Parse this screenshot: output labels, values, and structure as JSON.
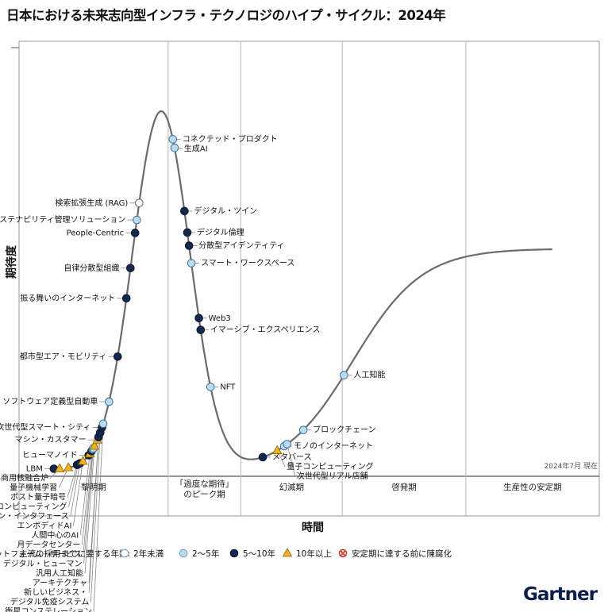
{
  "chart_data": {
    "type": "scatter",
    "title": "日本における未来志向型インフラ・テクノロジのハイプ・サイクル：2024年",
    "xlabel": "時間",
    "ylabel": "期待度",
    "timestamp": "2024年7月 現在",
    "phases": [
      {
        "label": "黎明期"
      },
      {
        "label": "「過度な期待」\nのピーク期"
      },
      {
        "label": "幻滅期"
      },
      {
        "label": "啓発期"
      },
      {
        "label": "生産性の安定期"
      }
    ],
    "legend": {
      "title": "主流の採用までに要する年数:",
      "items": [
        {
          "key": "lt2",
          "label": "2年未満",
          "color": "#ffffff"
        },
        {
          "key": "y2_5",
          "label": "2～5年",
          "color": "#b8dcf2"
        },
        {
          "key": "y5_10",
          "label": "5～10年",
          "color": "#13284f"
        },
        {
          "key": "gt10",
          "label": "10年以上",
          "color": "#f2b21b"
        },
        {
          "key": "obsolete",
          "label": "安定期に達する前に陳腐化",
          "color": "#d62b2b"
        }
      ]
    },
    "brand": "Gartner",
    "technologies": [
      {
        "name": "LBM",
        "x": 0.06,
        "y": 0.05,
        "adoption": "y5_10"
      },
      {
        "name": "商用核融合炉",
        "x": 0.07,
        "y": 0.06,
        "adoption": "gt10"
      },
      {
        "name": "量子機械学習",
        "x": 0.085,
        "y": 0.1,
        "adoption": "gt10"
      },
      {
        "name": "ポスト量子暗号",
        "x": 0.1,
        "y": 0.18,
        "adoption": "y5_10"
      },
      {
        "name": "空間コンピューティング",
        "x": 0.102,
        "y": 0.2,
        "adoption": "y5_10"
      },
      {
        "name": "双方向ブレイン・マシン・インタフェース",
        "x": 0.105,
        "y": 0.21,
        "adoption": "y5_10"
      },
      {
        "name": "エンボディドAI",
        "x": 0.11,
        "y": 0.26,
        "adoption": "gt10"
      },
      {
        "name": "ヒューマノイド",
        "x": 0.12,
        "y": 0.32,
        "adoption": "y5_10"
      },
      {
        "name": "人間中心のAI",
        "x": 0.122,
        "y": 0.34,
        "adoption": "gt10"
      },
      {
        "name": "月データセンター",
        "x": 0.125,
        "y": 0.36,
        "adoption": "y5_10"
      },
      {
        "name": "LLMプラットフォーム・サービス",
        "x": 0.127,
        "y": 0.38,
        "adoption": "lt2"
      },
      {
        "name": "デジタル・ヒューマン",
        "x": 0.128,
        "y": 0.39,
        "adoption": "y2_5"
      },
      {
        "name": "汎用人工知能",
        "x": 0.13,
        "y": 0.41,
        "adoption": "gt10"
      },
      {
        "name": "マシン・カスタマー",
        "x": 0.135,
        "y": 0.44,
        "adoption": "gt10"
      },
      {
        "name": "アーキテクチャ",
        "x": 0.137,
        "y": 0.45,
        "adoption": "y5_10"
      },
      {
        "name": "新しいビジネス・",
        "x": 0.137,
        "y": 0.45,
        "adoption": "y5_10"
      },
      {
        "name": "デジタル免疫システム",
        "x": 0.14,
        "y": 0.47,
        "adoption": "y5_10"
      },
      {
        "name": "次世代型スマート・シティ",
        "x": 0.143,
        "y": 0.5,
        "adoption": "y5_10"
      },
      {
        "name": "衛星コンステレーション",
        "x": 0.145,
        "y": 0.51,
        "adoption": "y2_5"
      },
      {
        "name": "ソフトウェア定義型自動車",
        "x": 0.155,
        "y": 0.56,
        "adoption": "y2_5"
      },
      {
        "name": "都市型エア・モビリティ",
        "x": 0.17,
        "y": 0.68,
        "adoption": "y5_10"
      },
      {
        "name": "振る舞いのインターネット",
        "x": 0.185,
        "y": 0.77,
        "adoption": "y5_10"
      },
      {
        "name": "自律分散型組織",
        "x": 0.192,
        "y": 0.8,
        "adoption": "y5_10"
      },
      {
        "name": "People-Centric",
        "x": 0.2,
        "y": 0.83,
        "adoption": "y5_10"
      },
      {
        "name": "サステナビリティ管理ソリューション",
        "x": 0.203,
        "y": 0.84,
        "adoption": "y2_5"
      },
      {
        "name": "検索拡張生成 (RAG)",
        "x": 0.207,
        "y": 0.85,
        "adoption": "lt2"
      },
      {
        "name": "コネクテッド・プロダクト",
        "x": 0.265,
        "y": 0.87,
        "adoption": "y2_5"
      },
      {
        "name": "生成AI",
        "x": 0.268,
        "y": 0.865,
        "adoption": "y2_5"
      },
      {
        "name": "デジタル・ツイン",
        "x": 0.285,
        "y": 0.81,
        "adoption": "y5_10"
      },
      {
        "name": "デジタル倫理",
        "x": 0.29,
        "y": 0.77,
        "adoption": "y5_10"
      },
      {
        "name": "分散型アイデンティティ",
        "x": 0.293,
        "y": 0.73,
        "adoption": "y5_10"
      },
      {
        "name": "スマート・ワークスペース",
        "x": 0.297,
        "y": 0.68,
        "adoption": "y2_5"
      },
      {
        "name": "Web3",
        "x": 0.31,
        "y": 0.46,
        "adoption": "y5_10"
      },
      {
        "name": "イマーシブ・エクスペリエンス",
        "x": 0.313,
        "y": 0.4,
        "adoption": "y5_10"
      },
      {
        "name": "NFT",
        "x": 0.33,
        "y": 0.26,
        "adoption": "y2_5"
      },
      {
        "name": "メタバース",
        "x": 0.42,
        "y": 0.13,
        "adoption": "y5_10"
      },
      {
        "name": "量子コンピューティング",
        "x": 0.445,
        "y": 0.15,
        "adoption": "gt10"
      },
      {
        "name": "モノのインターネット",
        "x": 0.457,
        "y": 0.18,
        "adoption": "y2_5"
      },
      {
        "name": "次世代型リアル店舗",
        "x": 0.462,
        "y": 0.19,
        "adoption": "y2_5"
      },
      {
        "name": "ブロックチェーン",
        "x": 0.49,
        "y": 0.23,
        "adoption": "y2_5"
      },
      {
        "name": "人工知能",
        "x": 0.56,
        "y": 0.36,
        "adoption": "y2_5"
      }
    ]
  }
}
